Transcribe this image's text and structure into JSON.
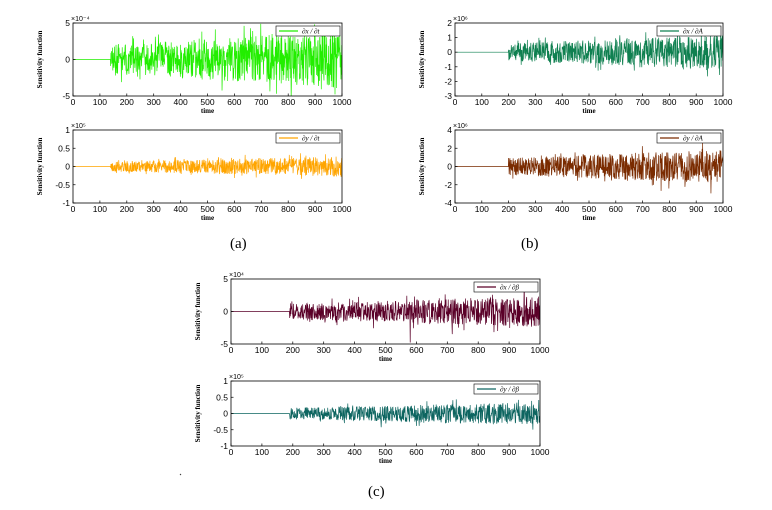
{
  "captions": {
    "a": "(a)",
    "b": "(b)",
    "c": "(c)"
  },
  "chart_data": [
    {
      "id": "a1",
      "type": "line",
      "ylabel": "Sensitivity function",
      "xlabel": "time",
      "xlim": [
        0,
        1000
      ],
      "xticks": [
        0,
        100,
        200,
        300,
        400,
        500,
        600,
        700,
        800,
        900,
        1000
      ],
      "ylim": [
        -5,
        5
      ],
      "yticks": [
        -5,
        0,
        5
      ],
      "exponent": "×10⁻⁴",
      "legend": "∂x / ∂t",
      "color": "#22ee00",
      "onset": 140,
      "amp": 3.6,
      "spike": 1.0,
      "seed": 11
    },
    {
      "id": "a2",
      "type": "line",
      "ylabel": "Sensitivity function",
      "xlabel": "time",
      "xlim": [
        0,
        1000
      ],
      "xticks": [
        0,
        100,
        200,
        300,
        400,
        500,
        600,
        700,
        800,
        900,
        1000
      ],
      "ylim": [
        -1,
        1
      ],
      "yticks": [
        -1,
        -0.5,
        0,
        0.5,
        1
      ],
      "exponent": "×10⁵",
      "legend": "∂y / ∂t",
      "color": "#ffa500",
      "onset": 140,
      "amp": 0.25,
      "spike": 0.5,
      "seed": 23
    },
    {
      "id": "b1",
      "type": "line",
      "ylabel": "Sensitivity function",
      "xlabel": "time",
      "xlim": [
        0,
        1000
      ],
      "xticks": [
        0,
        100,
        200,
        300,
        400,
        500,
        600,
        700,
        800,
        900,
        1000
      ],
      "ylim": [
        -3,
        2
      ],
      "yticks": [
        -3,
        -2,
        -1,
        0,
        1,
        2
      ],
      "exponent": "×10⁶",
      "legend": "∂x / ∂A",
      "color": "#0f8050",
      "onset": 200,
      "amp": 1.1,
      "spike": 1.6,
      "seed": 37
    },
    {
      "id": "b2",
      "type": "line",
      "ylabel": "Sensitivity function",
      "xlabel": "time",
      "xlim": [
        0,
        1000
      ],
      "xticks": [
        0,
        100,
        200,
        300,
        400,
        500,
        600,
        700,
        800,
        900,
        1000
      ],
      "ylim": [
        -4,
        4
      ],
      "yticks": [
        -4,
        -2,
        0,
        2,
        4
      ],
      "exponent": "×10⁶",
      "legend": "∂y / ∂A",
      "color": "#7a2b00",
      "onset": 200,
      "amp": 1.7,
      "spike": 1.5,
      "seed": 41
    },
    {
      "id": "c1",
      "type": "line",
      "ylabel": "Sensitivity function",
      "xlabel": "time",
      "xlim": [
        0,
        1000
      ],
      "xticks": [
        0,
        100,
        200,
        300,
        400,
        500,
        600,
        700,
        800,
        900,
        1000
      ],
      "ylim": [
        -5,
        5
      ],
      "yticks": [
        -5,
        0,
        5
      ],
      "exponent": "×10⁴",
      "legend": "∂x / ∂β",
      "color": "#5a0028",
      "onset": 190,
      "amp": 2.2,
      "spike": 2.0,
      "seed": 53
    },
    {
      "id": "c2",
      "type": "line",
      "ylabel": "Sensitivity function",
      "xlabel": "time",
      "xlim": [
        0,
        1000
      ],
      "xticks": [
        0,
        100,
        200,
        300,
        400,
        500,
        600,
        700,
        800,
        900,
        1000
      ],
      "ylim": [
        -1,
        1
      ],
      "yticks": [
        -1,
        -0.5,
        0,
        0.5,
        1
      ],
      "exponent": "×10⁵",
      "legend": "∂y / ∂β",
      "color": "#0d6560",
      "onset": 190,
      "amp": 0.32,
      "spike": 1.2,
      "seed": 67
    }
  ]
}
